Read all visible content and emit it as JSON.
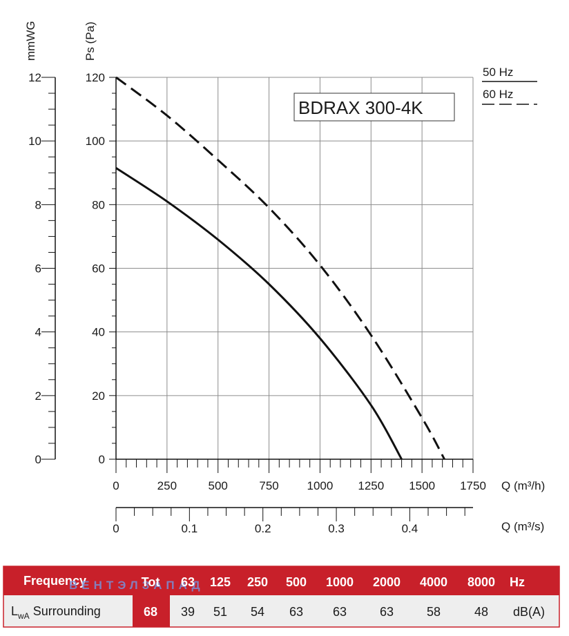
{
  "chart_data": {
    "type": "line",
    "model": "BDRAX 300-4K",
    "x_primary": {
      "label": "Q (m³/h)",
      "range": [
        0,
        1750
      ],
      "ticks": [
        "0",
        "250",
        "500",
        "750",
        "1000",
        "1250",
        "1500",
        "1750"
      ]
    },
    "x_secondary": {
      "label": "Q (m³/s)",
      "range": [
        0,
        0.4861
      ],
      "ticks": [
        "0",
        "0.1",
        "0.2",
        "0.3",
        "0.4"
      ]
    },
    "y_primary": {
      "label": "Ps (Pa)",
      "range": [
        0,
        120
      ],
      "ticks": [
        "0",
        "20",
        "40",
        "60",
        "80",
        "100",
        "120"
      ]
    },
    "y_secondary": {
      "label": "mmWG",
      "range": [
        0,
        12
      ],
      "ticks": [
        "0",
        "2",
        "4",
        "6",
        "8",
        "10",
        "12"
      ]
    },
    "grid": true,
    "legend": {
      "placement": "top-right",
      "entries": [
        "50 Hz",
        "60 Hz"
      ]
    },
    "series": [
      {
        "name": "50 Hz",
        "style": "solid",
        "x": [
          0,
          250,
          500,
          750,
          1000,
          1250,
          1400
        ],
        "y": [
          91.5,
          81,
          69,
          55,
          38,
          17,
          0
        ]
      },
      {
        "name": "60 Hz",
        "style": "dashed",
        "x": [
          0,
          250,
          500,
          750,
          1000,
          1250,
          1500,
          1610
        ],
        "y": [
          120,
          108,
          94,
          79,
          61,
          39,
          13,
          0
        ]
      }
    ]
  },
  "watermark": "ВЕНТЭЛЗАПАД",
  "table": {
    "header_label": "Frequency",
    "row_label_main": "L",
    "row_label_sub": "wA",
    "row_label_rest": " Surrounding",
    "bands": [
      "Tot",
      "63",
      "125",
      "250",
      "500",
      "1000",
      "2000",
      "4000",
      "8000",
      "Hz"
    ],
    "values": [
      "68",
      "39",
      "51",
      "54",
      "63",
      "63",
      "63",
      "58",
      "48",
      "dB(A)"
    ]
  },
  "colors": {
    "accent": "#c8202a",
    "grid": "#8c8c8c",
    "curve": "#111111",
    "row_bg": "#eeeeee"
  }
}
